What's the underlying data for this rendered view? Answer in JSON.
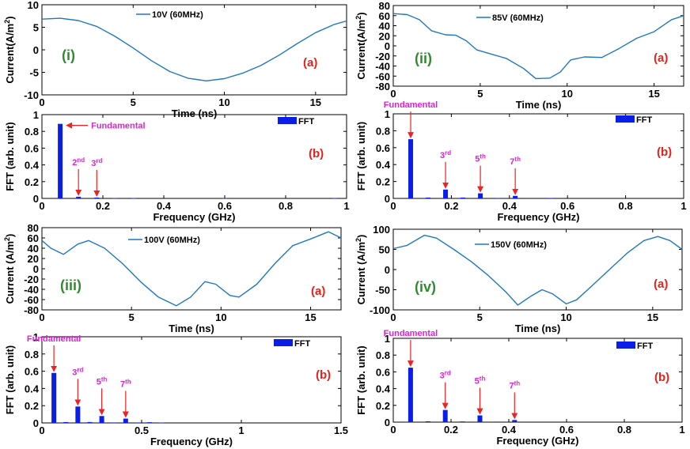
{
  "figure": {
    "colors": {
      "line": "#1f77c4",
      "bar": "#0a1ee8",
      "arrow": "#ee2222",
      "roman": "#2e8b2e",
      "tag": "#e8201a",
      "annotation": "#e020d8"
    }
  },
  "chart_data": [
    {
      "id": "p1a",
      "type": "line",
      "legend": "10V (60MHz)",
      "roman": "(i)",
      "tag": "(a)",
      "xlabel": "Time (ns)",
      "ylabel": "Current(A/m2)",
      "xlim": [
        0,
        16.7
      ],
      "ylim": [
        -10,
        10
      ],
      "xticks": [
        0,
        5,
        10,
        15
      ],
      "yticks": [
        -10,
        -5,
        0,
        5,
        10
      ],
      "x": [
        0,
        1,
        2,
        3,
        4,
        5,
        6,
        7,
        8,
        9,
        10,
        11,
        12,
        13,
        14,
        15,
        16,
        16.7
      ],
      "y": [
        6.8,
        7.0,
        6.5,
        5.2,
        3.0,
        0.4,
        -2.4,
        -4.8,
        -6.3,
        -6.9,
        -6.4,
        -5.2,
        -3.5,
        -1.2,
        1.4,
        3.8,
        5.6,
        6.4
      ]
    },
    {
      "id": "p1b",
      "type": "bar",
      "legend": "FFT",
      "tag": "(b)",
      "xlabel": "Frequency (GHz)",
      "ylabel": "FFT (arb. unit)",
      "xlim": [
        0,
        1
      ],
      "ylim": [
        0,
        1
      ],
      "xticks": [
        0,
        0.2,
        0.4,
        0.6,
        0.8,
        1
      ],
      "yticks": [
        0,
        0.2,
        0.4,
        0.6,
        0.8,
        1
      ],
      "x": [
        0.06,
        0.12,
        0.18,
        0.24,
        0.3,
        0.6,
        0.96
      ],
      "values": [
        0.89,
        0.02,
        0.01,
        0.004,
        0.003,
        0.003,
        0.003
      ],
      "annotations": [
        {
          "base": "Fundamental",
          "sup": "",
          "x": 0.06,
          "y": 0.89,
          "style": "side"
        },
        {
          "base": "2",
          "sup": "nd",
          "x": 0.12,
          "y": 0.02,
          "style": "down"
        },
        {
          "base": "3",
          "sup": "rd",
          "x": 0.18,
          "y": 0.01,
          "style": "down"
        }
      ]
    },
    {
      "id": "p2a",
      "type": "line",
      "legend": "85V (60MHz)",
      "roman": "(ii)",
      "tag": "(a)",
      "xlabel": "Time (ns)",
      "ylabel": "Current(A/m2)",
      "xlim": [
        0,
        16.7
      ],
      "ylim": [
        -80,
        80
      ],
      "xticks": [
        0,
        5,
        10,
        15
      ],
      "yticks": [
        -80,
        -60,
        -40,
        -20,
        0,
        20,
        40,
        60,
        80
      ],
      "x": [
        0,
        0.8,
        1.5,
        2.2,
        3,
        3.6,
        4.2,
        4.8,
        5.5,
        6.5,
        7.5,
        8.2,
        9,
        9.6,
        10.2,
        11,
        12,
        13,
        14,
        15,
        16,
        16.7
      ],
      "y": [
        64,
        62,
        52,
        30,
        22,
        21,
        10,
        -8,
        -15,
        -25,
        -45,
        -65,
        -64,
        -52,
        -28,
        -22,
        -23,
        -5,
        15,
        28,
        52,
        60
      ]
    },
    {
      "id": "p2b",
      "type": "bar",
      "legend": "FFT",
      "tag": "(b)",
      "xlabel": "Frequency (GHz)",
      "ylabel": "FFT (arb. unit)",
      "xlim": [
        0,
        1
      ],
      "ylim": [
        0,
        1
      ],
      "xticks": [
        0,
        0.2,
        0.4,
        0.6,
        0.8,
        1
      ],
      "yticks": [
        0,
        0.2,
        0.4,
        0.6,
        0.8,
        1
      ],
      "x": [
        0.06,
        0.12,
        0.18,
        0.24,
        0.3,
        0.36,
        0.42,
        0.54
      ],
      "values": [
        0.7,
        0.01,
        0.105,
        0.01,
        0.06,
        0.005,
        0.03,
        0.005
      ],
      "annotations": [
        {
          "base": "Fundamental",
          "sup": "",
          "x": 0.06,
          "y": 0.7,
          "style": "down"
        },
        {
          "base": "3",
          "sup": "rd",
          "x": 0.18,
          "y": 0.105,
          "style": "down"
        },
        {
          "base": "5",
          "sup": "th",
          "x": 0.3,
          "y": 0.06,
          "style": "down"
        },
        {
          "base": "7",
          "sup": "th",
          "x": 0.42,
          "y": 0.03,
          "style": "down"
        }
      ]
    },
    {
      "id": "p3a",
      "type": "line",
      "legend": "100V (60MHz)",
      "roman": "(iii)",
      "tag": "(a)",
      "xlabel": "Time (ns)",
      "ylabel": "Current (A/m2)",
      "xlim": [
        0,
        16.7
      ],
      "ylim": [
        -80,
        80
      ],
      "xticks": [
        0,
        5,
        10,
        15
      ],
      "yticks": [
        -80,
        -60,
        -40,
        -20,
        0,
        20,
        40,
        60,
        80
      ],
      "x": [
        0,
        0.5,
        1.2,
        2,
        2.6,
        3.5,
        4.5,
        5.5,
        6.5,
        7.5,
        8.3,
        9.1,
        9.7,
        10.5,
        11,
        12,
        13,
        14,
        15,
        16,
        16.7
      ],
      "y": [
        55,
        40,
        28,
        48,
        55,
        40,
        10,
        -25,
        -55,
        -72,
        -55,
        -25,
        -30,
        -52,
        -55,
        -30,
        10,
        45,
        58,
        72,
        60
      ]
    },
    {
      "id": "p3b",
      "type": "bar",
      "legend": "FFT",
      "tag": "(b)",
      "xlabel": "Frequency (GHz)",
      "ylabel": "FFT (arb. unit)",
      "xlim": [
        0,
        1.5
      ],
      "ylim": [
        0,
        1
      ],
      "xticks": [
        0,
        0.5,
        1,
        1.5
      ],
      "yticks": [
        0,
        0.2,
        0.4,
        0.6,
        0.8,
        1
      ],
      "x": [
        0.06,
        0.12,
        0.18,
        0.24,
        0.3,
        0.36,
        0.42,
        0.48,
        0.54,
        0.6
      ],
      "values": [
        0.58,
        0.01,
        0.19,
        0.01,
        0.08,
        0.005,
        0.05,
        0.005,
        0.008,
        0.004
      ],
      "annotations": [
        {
          "base": "Fundamental",
          "sup": "",
          "x": 0.06,
          "y": 0.58,
          "style": "down"
        },
        {
          "base": "3",
          "sup": "rd",
          "x": 0.18,
          "y": 0.19,
          "style": "down"
        },
        {
          "base": "5",
          "sup": "th",
          "x": 0.3,
          "y": 0.08,
          "style": "down"
        },
        {
          "base": "7",
          "sup": "th",
          "x": 0.42,
          "y": 0.05,
          "style": "down"
        }
      ]
    },
    {
      "id": "p4a",
      "type": "line",
      "legend": "150V (60MHz)",
      "roman": "(iv)",
      "tag": "(a)",
      "xlabel": "Time (ns)",
      "ylabel": "Current (A/m2)",
      "xlim": [
        0,
        16.7
      ],
      "ylim": [
        -100,
        100
      ],
      "xticks": [
        0,
        5,
        10,
        15
      ],
      "yticks": [
        -100,
        -50,
        0,
        50,
        100
      ],
      "x": [
        0,
        0.8,
        1.8,
        2.5,
        3.5,
        4.5,
        5.5,
        6.5,
        7.2,
        8,
        8.6,
        9.2,
        10,
        10.6,
        11.5,
        12.5,
        13.5,
        14.5,
        15.3,
        16,
        16.7
      ],
      "y": [
        52,
        60,
        85,
        78,
        50,
        20,
        -15,
        -55,
        -88,
        -65,
        -50,
        -60,
        -85,
        -75,
        -40,
        0,
        40,
        72,
        82,
        72,
        50
      ]
    },
    {
      "id": "p4b",
      "type": "bar",
      "legend": "FFT",
      "tag": "(b)",
      "xlabel": "Frequency (GHz)",
      "ylabel": "FFT (arb. unit)",
      "xlim": [
        0,
        1
      ],
      "ylim": [
        0,
        1
      ],
      "xticks": [
        0,
        0.2,
        0.4,
        0.6,
        0.8,
        1
      ],
      "yticks": [
        0,
        0.2,
        0.4,
        0.6,
        0.8,
        1
      ],
      "x": [
        0.06,
        0.12,
        0.18,
        0.24,
        0.3,
        0.36,
        0.42
      ],
      "values": [
        0.65,
        0.01,
        0.145,
        0.008,
        0.08,
        0.006,
        0.025
      ],
      "annotations": [
        {
          "base": "Fundamental",
          "sup": "",
          "x": 0.06,
          "y": 0.65,
          "style": "down"
        },
        {
          "base": "3",
          "sup": "rd",
          "x": 0.18,
          "y": 0.145,
          "style": "down"
        },
        {
          "base": "5",
          "sup": "th",
          "x": 0.3,
          "y": 0.08,
          "style": "down"
        },
        {
          "base": "7",
          "sup": "th",
          "x": 0.42,
          "y": 0.025,
          "style": "down"
        }
      ]
    }
  ]
}
